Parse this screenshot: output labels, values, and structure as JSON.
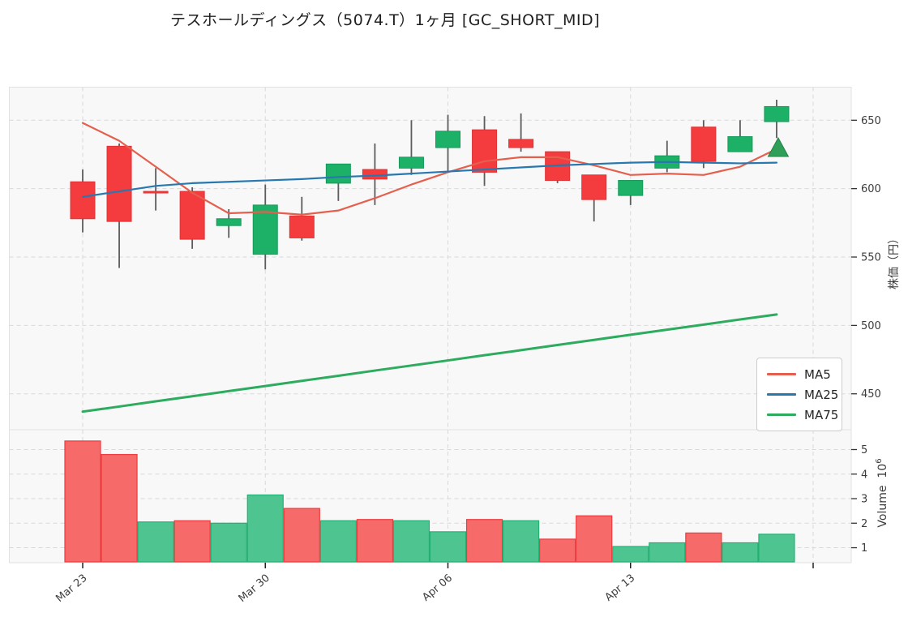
{
  "title": "テスホールディングス（5074.T）1ヶ月 [GC_SHORT_MID]",
  "axes": {
    "price_label": "株価（円）",
    "volume_label": "Volume",
    "volume_exponent_base": "10",
    "volume_exponent": "6",
    "price_ticks": [
      650,
      600,
      550,
      500,
      450
    ],
    "volume_ticks": [
      5,
      4,
      3,
      2,
      1
    ],
    "x_ticks": [
      {
        "label": "Mar 23",
        "index": 0
      },
      {
        "label": "Mar 30",
        "index": 5
      },
      {
        "label": "Apr 06",
        "index": 10
      },
      {
        "label": "Apr 13",
        "index": 15
      },
      {
        "label": "",
        "index": 20
      }
    ]
  },
  "legend": {
    "items": [
      {
        "label": "MA5",
        "color": "#e4604e"
      },
      {
        "label": "MA25",
        "color": "#2878b0"
      },
      {
        "label": "MA75",
        "color": "#2dab5f"
      }
    ],
    "position": "lower-right"
  },
  "colors": {
    "candle_up": "#1db168",
    "candle_up_edge": "#149a59",
    "candle_down": "#f43b3e",
    "candle_down_edge": "#de3336",
    "volume_up": "#4ec591",
    "volume_up_edge": "#23b173",
    "volume_down": "#f76a6a",
    "volume_down_edge": "#ef3a3e",
    "wick": "#5c5c5c",
    "grid": "#d9d9d9",
    "panel_bg": "#f8f8f8",
    "panel_border": "#e2e2e2",
    "tick_text": "#3c3c3c",
    "marker": "#2f9e57"
  },
  "chart_data": {
    "type": "candlestick",
    "subpanels": [
      "price",
      "volume"
    ],
    "price_axis_range": [
      425,
      675
    ],
    "volume_axis_units": "10^6",
    "grid": true,
    "candles": [
      {
        "open": 605,
        "high": 614,
        "low": 568,
        "close": 578,
        "color": "down",
        "volume": 5.35,
        "volume_color": "down"
      },
      {
        "open": 631,
        "high": 633,
        "low": 542,
        "close": 576,
        "color": "down",
        "volume": 4.8,
        "volume_color": "down"
      },
      {
        "open": 598,
        "high": 615,
        "low": 584,
        "close": 597,
        "color": "down",
        "volume": 2.05,
        "volume_color": "up"
      },
      {
        "open": 598,
        "high": 601,
        "low": 556,
        "close": 563,
        "color": "down",
        "volume": 2.1,
        "volume_color": "down"
      },
      {
        "open": 573,
        "high": 585,
        "low": 564,
        "close": 578,
        "color": "up",
        "volume": 2.0,
        "volume_color": "up"
      },
      {
        "open": 552,
        "high": 603,
        "low": 541,
        "close": 588,
        "color": "up",
        "volume": 3.15,
        "volume_color": "up"
      },
      {
        "open": 580,
        "high": 594,
        "low": 562,
        "close": 564,
        "color": "down",
        "volume": 2.6,
        "volume_color": "down"
      },
      {
        "open": 604,
        "high": 618,
        "low": 591,
        "close": 618,
        "color": "up",
        "volume": 2.1,
        "volume_color": "up"
      },
      {
        "open": 614,
        "high": 633,
        "low": 588,
        "close": 607,
        "color": "down",
        "volume": 2.15,
        "volume_color": "down"
      },
      {
        "open": 615,
        "high": 650,
        "low": 610,
        "close": 623,
        "color": "up",
        "volume": 2.1,
        "volume_color": "up"
      },
      {
        "open": 630,
        "high": 654,
        "low": 613,
        "close": 642,
        "color": "up",
        "volume": 1.65,
        "volume_color": "up"
      },
      {
        "open": 643,
        "high": 653,
        "low": 602,
        "close": 612,
        "color": "down",
        "volume": 2.15,
        "volume_color": "down"
      },
      {
        "open": 636,
        "high": 655,
        "low": 627,
        "close": 630,
        "color": "down",
        "volume": 2.1,
        "volume_color": "up"
      },
      {
        "open": 627,
        "high": 627,
        "low": 604,
        "close": 606,
        "color": "down",
        "volume": 1.35,
        "volume_color": "down"
      },
      {
        "open": 610,
        "high": 610,
        "low": 576,
        "close": 592,
        "color": "down",
        "volume": 2.3,
        "volume_color": "down"
      },
      {
        "open": 595,
        "high": 606,
        "low": 588,
        "close": 606,
        "color": "up",
        "volume": 1.05,
        "volume_color": "up"
      },
      {
        "open": 615,
        "high": 635,
        "low": 612,
        "close": 624,
        "color": "up",
        "volume": 1.2,
        "volume_color": "up"
      },
      {
        "open": 645,
        "high": 650,
        "low": 615,
        "close": 620,
        "color": "down",
        "volume": 1.6,
        "volume_color": "down"
      },
      {
        "open": 627,
        "high": 650,
        "low": 627,
        "close": 638,
        "color": "up",
        "volume": 1.2,
        "volume_color": "up"
      },
      {
        "open": 649,
        "high": 665,
        "low": 637,
        "close": 660,
        "color": "up",
        "volume": 1.55,
        "volume_color": "up"
      }
    ],
    "series": [
      {
        "name": "MA5",
        "color": "#e4604e",
        "width": 2.2,
        "values": [
          648,
          635,
          616,
          597,
          582,
          583,
          581,
          584,
          593,
          603,
          612,
          620,
          623,
          623,
          617,
          610,
          611,
          610,
          616,
          629
        ]
      },
      {
        "name": "MA25",
        "color": "#2878b0",
        "width": 2.2,
        "values": [
          594,
          598,
          602,
          604,
          605,
          606,
          607,
          608.5,
          609.5,
          611,
          612.5,
          614,
          615.5,
          617,
          618,
          619,
          619.5,
          619,
          618.5,
          619
        ]
      },
      {
        "name": "MA75",
        "color": "#2dab5f",
        "width": 3,
        "values": [
          437,
          440.7,
          444.5,
          448.2,
          452,
          455.7,
          459.5,
          463.2,
          467,
          470.7,
          474.4,
          478.2,
          481.9,
          485.7,
          489.4,
          493.2,
          496.9,
          500.6,
          504.4,
          508
        ]
      }
    ],
    "marker": {
      "index": 19,
      "price": 630,
      "shape": "triangle-up",
      "color": "#2f9e57",
      "meaning": "GC signal"
    }
  }
}
